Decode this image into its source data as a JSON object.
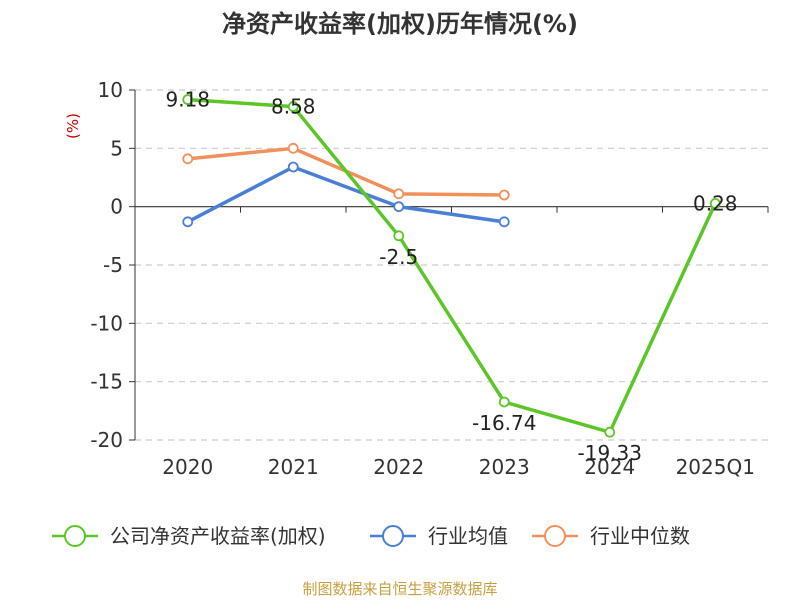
{
  "chart_data": {
    "type": "line",
    "title": "净资产收益率(加权)历年情况(%)",
    "unit_label": "(%)",
    "categories": [
      "2020",
      "2021",
      "2022",
      "2023",
      "2024",
      "2025Q1"
    ],
    "ylim": [
      -20,
      10
    ],
    "yticks": [
      10,
      5,
      0,
      -5,
      -10,
      -15,
      -20
    ],
    "grid": true,
    "legend_position": "bottom",
    "series": [
      {
        "name": "公司净资产收益率(加权)",
        "color": "#5cc628",
        "values": [
          9.18,
          8.58,
          -2.5,
          -16.74,
          -19.33,
          0.28
        ],
        "labels": [
          "9.18",
          "8.58",
          "-2.5",
          "-16.74",
          "-19.33",
          "0.28"
        ]
      },
      {
        "name": "行业均值",
        "color": "#4a7fd6",
        "values": [
          -1.3,
          3.4,
          0.0,
          -1.3,
          null,
          null
        ]
      },
      {
        "name": "行业中位数",
        "color": "#f2905c",
        "values": [
          4.1,
          5.0,
          1.1,
          1.0,
          null,
          null
        ]
      }
    ]
  },
  "footer": {
    "source": "制图数据来自恒生聚源数据库"
  }
}
